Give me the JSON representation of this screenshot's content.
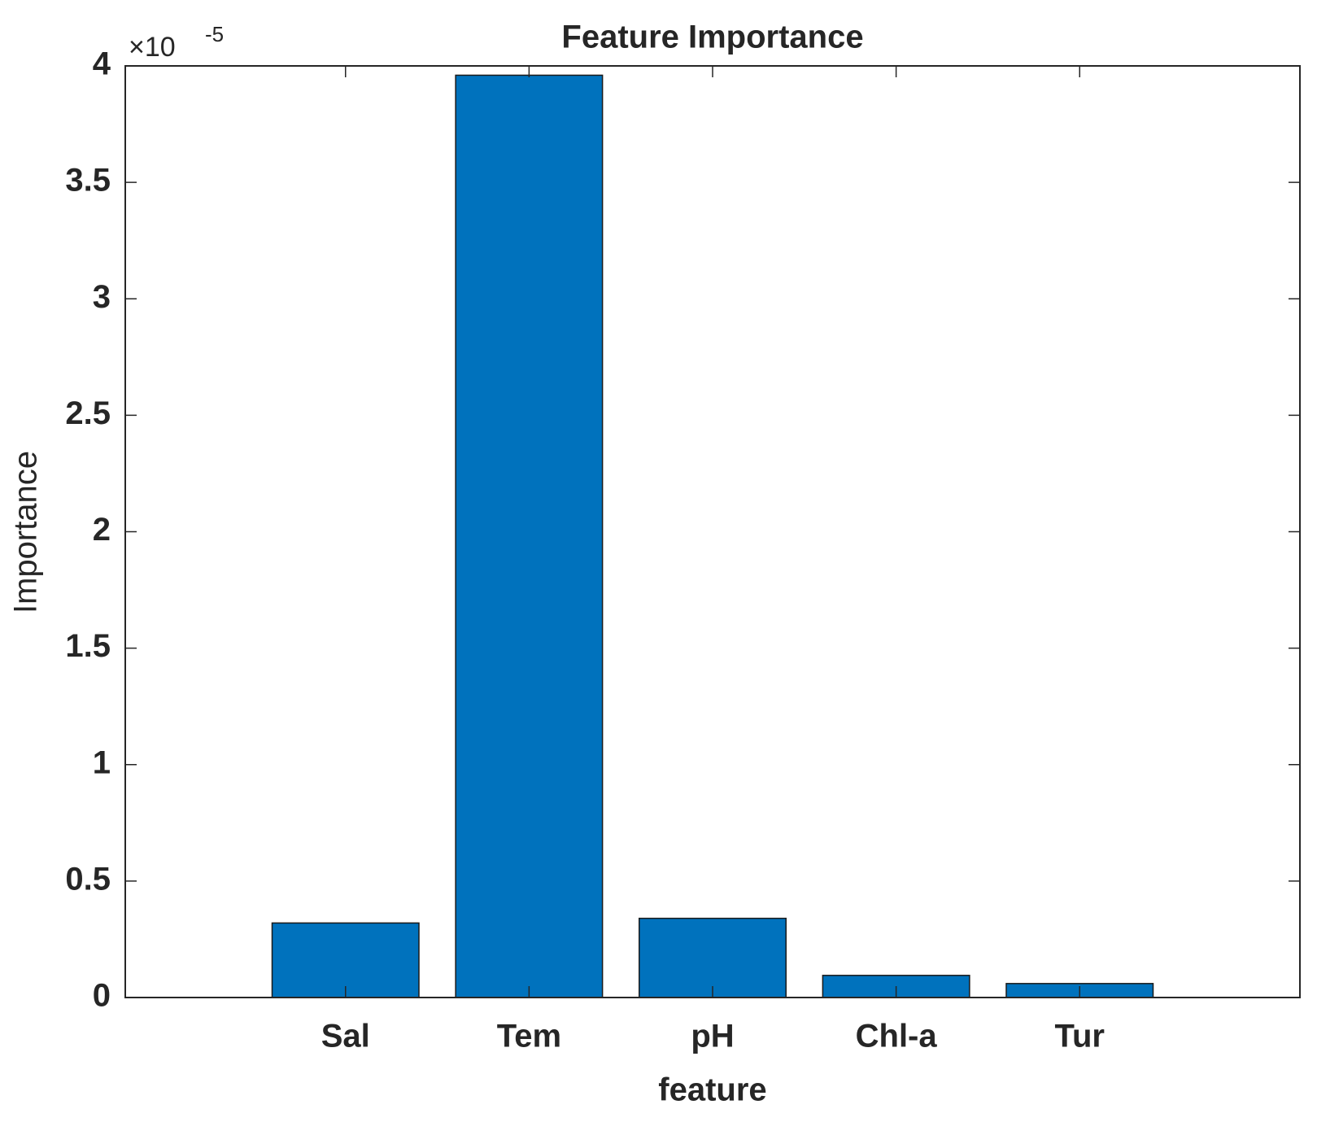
{
  "chart_data": {
    "type": "bar",
    "title": "Feature Importance",
    "x_label": "feature",
    "y_label": "Importance",
    "y_multiplier": {
      "base": "×10",
      "exponent": "-5"
    },
    "categories": [
      "Sal",
      "Tem",
      "pH",
      "Chl-a",
      "Tur"
    ],
    "values": [
      0.32,
      3.96,
      0.34,
      0.095,
      0.06
    ],
    "color": "#0072bd",
    "ylim": [
      0,
      4
    ],
    "yticks": [
      0,
      0.5,
      1,
      1.5,
      2,
      2.5,
      3,
      3.5,
      4
    ],
    "grid": false
  }
}
